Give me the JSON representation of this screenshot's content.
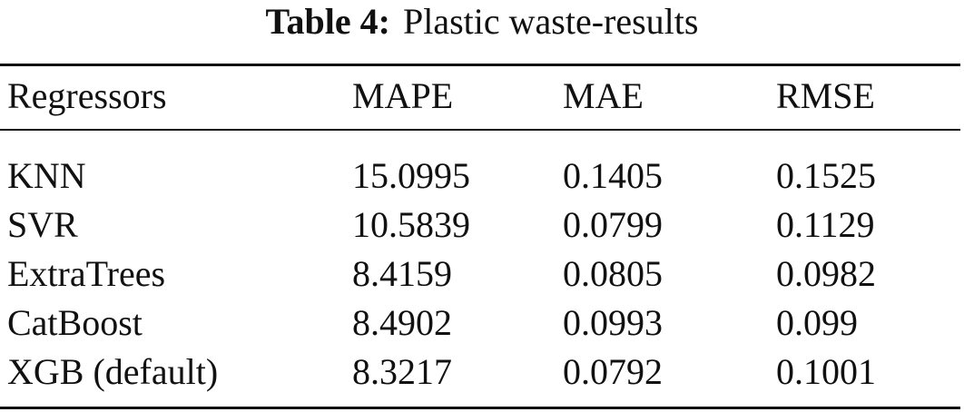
{
  "title": {
    "label": "Table 4:",
    "text": "Plastic waste-results"
  },
  "table": {
    "header": [
      "Regressors",
      "MAPE",
      "MAE",
      "RMSE"
    ],
    "rows": [
      [
        "KNN",
        "15.0995",
        "0.1405",
        "0.1525"
      ],
      [
        "SVR",
        "10.5839",
        "0.0799",
        "0.1129"
      ],
      [
        "ExtraTrees",
        "8.4159",
        "0.0805",
        "0.0982"
      ],
      [
        "CatBoost",
        "8.4902",
        "0.0993",
        "0.099"
      ],
      [
        "XGB (default)",
        "8.3217",
        "0.0792",
        "0.1001"
      ]
    ]
  }
}
